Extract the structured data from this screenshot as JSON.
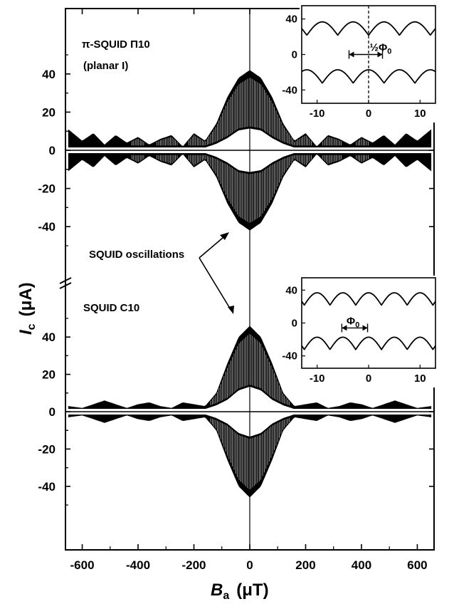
{
  "chart_data": [
    {
      "type": "line",
      "title": "",
      "xlabel": "B_a (μT)",
      "ylabel": "I_c (μA)",
      "xlabel_parts": {
        "symbol": "B",
        "sub": "a",
        "unit": "(μT)"
      },
      "ylabel_parts": {
        "symbol": "I",
        "sub": "c",
        "unit": "(μA)"
      },
      "xlim": [
        -660,
        660
      ],
      "xticks": [
        -600,
        -400,
        -200,
        0,
        200,
        400,
        600
      ],
      "yticks_upper": [
        -40,
        -20,
        0,
        20,
        40
      ],
      "yticks_lower": [
        -40,
        -20,
        0,
        20,
        40
      ],
      "grid": false,
      "axis_break": true,
      "panels": [
        {
          "name": "upper",
          "label_line1": "π-SQUID  Π10",
          "label_line2": "(planar I)",
          "ylim": [
            -55,
            65
          ],
          "envelope_x": [
            -650,
            -600,
            -560,
            -520,
            -480,
            -440,
            -400,
            -360,
            -320,
            -280,
            -240,
            -200,
            -160,
            -120,
            -80,
            -40,
            0,
            40,
            80,
            120,
            160,
            200,
            240,
            280,
            320,
            360,
            400,
            440,
            480,
            520,
            560,
            600,
            650
          ],
          "envelope_upper": [
            11,
            5,
            9,
            3,
            8,
            4,
            7,
            3,
            6,
            8,
            2,
            9,
            5,
            14,
            28,
            38,
            42,
            38,
            28,
            14,
            5,
            9,
            2,
            8,
            6,
            3,
            7,
            4,
            8,
            3,
            9,
            5,
            11
          ],
          "envelope_lower": [
            0,
            0,
            0,
            0,
            0,
            0,
            0,
            0,
            0,
            0,
            0,
            0,
            0,
            2,
            5,
            9,
            10,
            9,
            5,
            2,
            0,
            0,
            0,
            0,
            0,
            0,
            0,
            0,
            0,
            0,
            0,
            0,
            0
          ]
        },
        {
          "name": "lower",
          "label_line1": "SQUID  C10",
          "ylim": [
            -55,
            65
          ],
          "envelope_x": [
            -650,
            -600,
            -560,
            -520,
            -480,
            -440,
            -400,
            -360,
            -320,
            -280,
            -240,
            -200,
            -160,
            -120,
            -80,
            -40,
            0,
            40,
            80,
            120,
            160,
            200,
            240,
            280,
            320,
            360,
            400,
            440,
            480,
            520,
            560,
            600,
            650
          ],
          "envelope_upper": [
            3,
            2,
            4,
            6,
            4,
            2,
            4,
            5,
            3,
            2,
            5,
            4,
            3,
            10,
            26,
            40,
            46,
            40,
            26,
            10,
            3,
            4,
            5,
            2,
            3,
            5,
            4,
            2,
            4,
            6,
            4,
            2,
            3
          ],
          "envelope_lower": [
            0,
            0,
            0,
            0,
            0,
            0,
            0,
            0,
            0,
            0,
            0,
            0,
            0,
            2,
            5,
            10,
            12,
            10,
            5,
            2,
            0,
            0,
            0,
            0,
            0,
            0,
            0,
            0,
            0,
            0,
            0,
            0,
            0
          ]
        }
      ],
      "annotation": "SQUID oscillations"
    },
    {
      "type": "line",
      "name": "inset-upper",
      "xlim": [
        -13,
        13
      ],
      "ylim": [
        -55,
        55
      ],
      "xticks": [
        -10,
        0,
        10
      ],
      "yticks": [
        -40,
        0,
        40
      ],
      "series": [
        {
          "name": "positive branch",
          "center": 27,
          "amplitude": 15,
          "period": 6,
          "phase_shift": 0.5
        },
        {
          "name": "negative branch",
          "center": -27,
          "amplitude": 15,
          "period": 6,
          "phase_shift": 0
        }
      ],
      "annotation": "½Φ₀",
      "annotation_main": "½Φ",
      "annotation_sub": "0"
    },
    {
      "type": "line",
      "name": "inset-lower",
      "xlim": [
        -13,
        13
      ],
      "ylim": [
        -55,
        55
      ],
      "xticks": [
        -10,
        0,
        10
      ],
      "yticks": [
        -40,
        0,
        40
      ],
      "series": [
        {
          "name": "positive branch",
          "center": 27,
          "amplitude": 15,
          "period": 5,
          "phase_shift": 0
        },
        {
          "name": "negative branch",
          "center": -27,
          "amplitude": 15,
          "period": 5,
          "phase_shift": 0
        }
      ],
      "annotation": "Φ₀",
      "annotation_main": "Φ",
      "annotation_sub": "0"
    }
  ]
}
